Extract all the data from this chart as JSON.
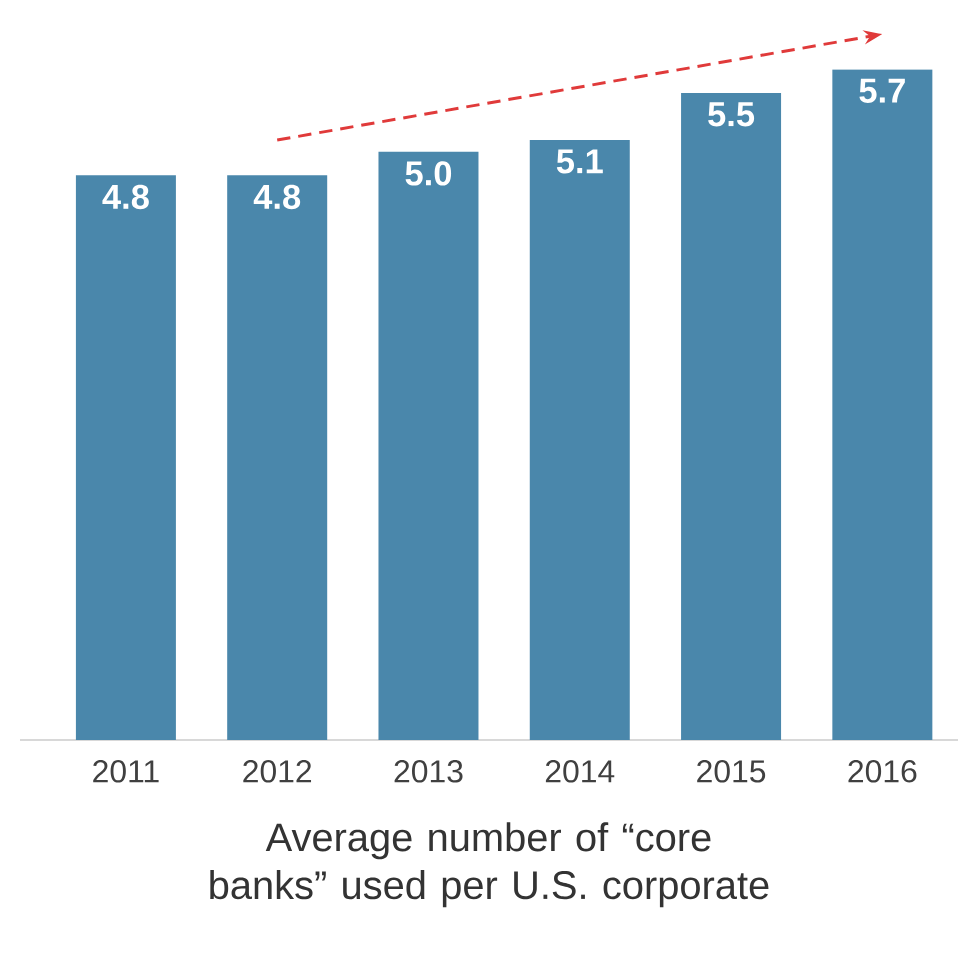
{
  "chart_data": {
    "type": "bar",
    "xlabel": "Average number of “core banks” used per U.S. corporate",
    "categories": [
      "2011",
      "2012",
      "2013",
      "2014",
      "2015",
      "2016"
    ],
    "values": [
      4.8,
      4.8,
      5.0,
      5.1,
      5.5,
      5.7
    ],
    "value_labels": [
      "4.8",
      "4.8",
      "5.0",
      "5.1",
      "5.5",
      "5.7"
    ],
    "color": "#4a87ab",
    "series": [
      {
        "type": "line",
        "values": [
          null,
          5.1,
          null,
          null,
          null,
          6.0
        ],
        "color": "#e03a3a",
        "line_style": "dashed"
      }
    ]
  }
}
